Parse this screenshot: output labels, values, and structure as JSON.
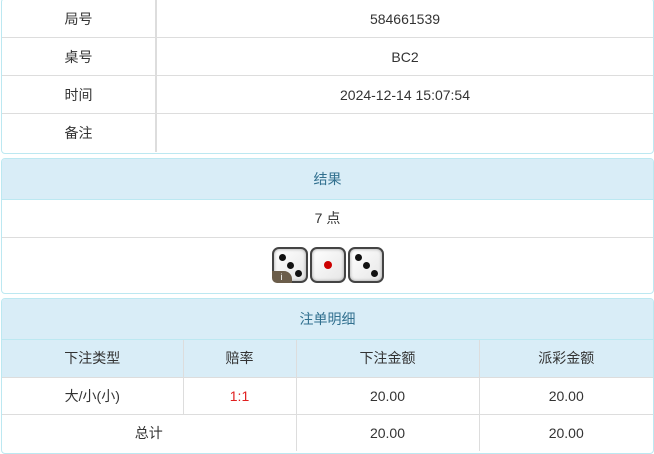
{
  "info": [
    {
      "label": "局号",
      "value": "584661539"
    },
    {
      "label": "桌号",
      "value": "BC2"
    },
    {
      "label": "时间",
      "value": "2024-12-14 15:07:54"
    },
    {
      "label": "备注",
      "value": ""
    }
  ],
  "result": {
    "title": "结果",
    "points": "7 点",
    "dice": [
      3,
      1,
      3
    ],
    "info_badge": "i"
  },
  "bets": {
    "title": "注单明细",
    "headers": [
      "下注类型",
      "赔率",
      "下注金额",
      "派彩金额"
    ],
    "rows": [
      {
        "type": "大/小(小)",
        "odds": "1:1",
        "amount": "20.00",
        "payout": "20.00"
      }
    ],
    "total": {
      "label": "总计",
      "amount": "20.00",
      "payout": "20.00"
    },
    "odds_color": "#e02020"
  }
}
